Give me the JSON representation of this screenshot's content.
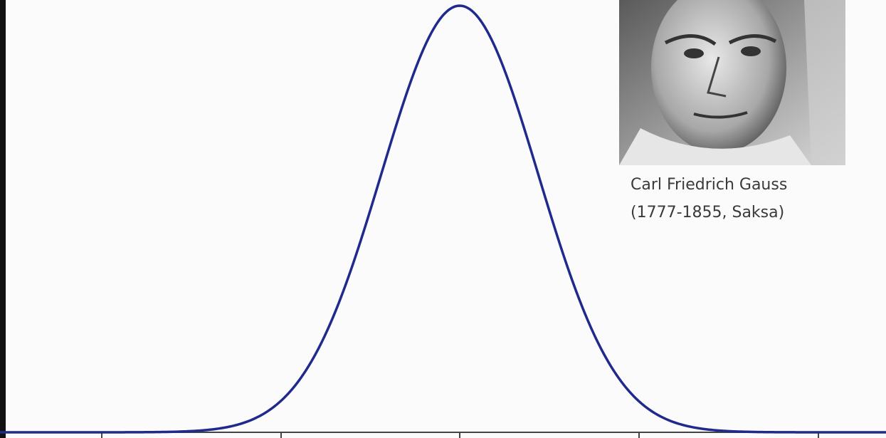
{
  "portrait": {
    "caption": [
      "Carl Friedrich Gauss",
      "(1777-1855, Saksa)"
    ]
  }
}
